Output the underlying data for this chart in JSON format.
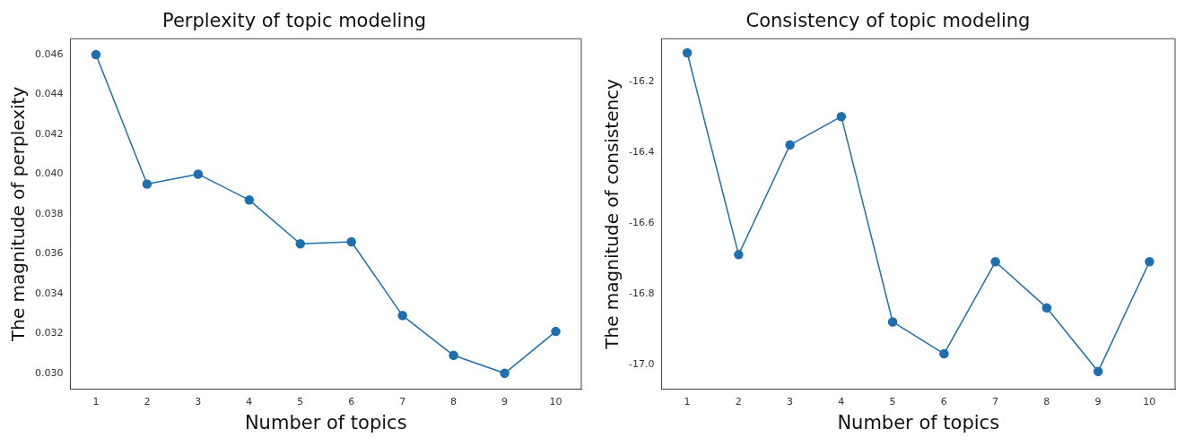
{
  "chart_data": [
    {
      "type": "line",
      "title": "Perplexity of topic modeling",
      "xlabel": "Number of topics",
      "ylabel": "The magnitude of perplexity",
      "categories": [
        "1",
        "2",
        "3",
        "4",
        "5",
        "6",
        "7",
        "8",
        "9",
        "10"
      ],
      "series": [
        {
          "color": "#1f6fb0",
          "values": [
            0.046,
            0.0395,
            0.04,
            0.0387,
            0.0365,
            0.0366,
            0.0329,
            0.0309,
            0.03,
            0.0321
          ]
        }
      ],
      "ylim": [
        0.0292,
        0.0468
      ],
      "yticks": [
        {
          "value": 0.03,
          "label": "0.030"
        },
        0.032,
        0.034,
        0.036,
        0.038,
        {
          "value": 0.04,
          "label": "0.040"
        },
        0.042,
        0.044,
        0.046
      ],
      "grid": false,
      "legend": false,
      "marker": "circle",
      "line_style": "solid"
    },
    {
      "type": "line",
      "title": "Consistency of topic modeling",
      "xlabel": "Number of topics",
      "ylabel": "The magnitude of consistency",
      "categories": [
        "1",
        "2",
        "3",
        "4",
        "5",
        "6",
        "7",
        "8",
        "9",
        "10"
      ],
      "series": [
        {
          "color": "#1f6fb0",
          "values": [
            -16.12,
            -16.69,
            -16.38,
            -16.3,
            -16.88,
            -16.97,
            -16.71,
            -16.84,
            -17.02,
            -16.71
          ]
        }
      ],
      "ylim": [
        -17.07,
        -16.08
      ],
      "yticks": [
        {
          "value": -17,
          "label": "-17.0"
        },
        -16.8,
        -16.6,
        -16.4,
        -16.2
      ],
      "grid": false,
      "legend": false,
      "marker": "circle",
      "line_style": "solid"
    }
  ]
}
